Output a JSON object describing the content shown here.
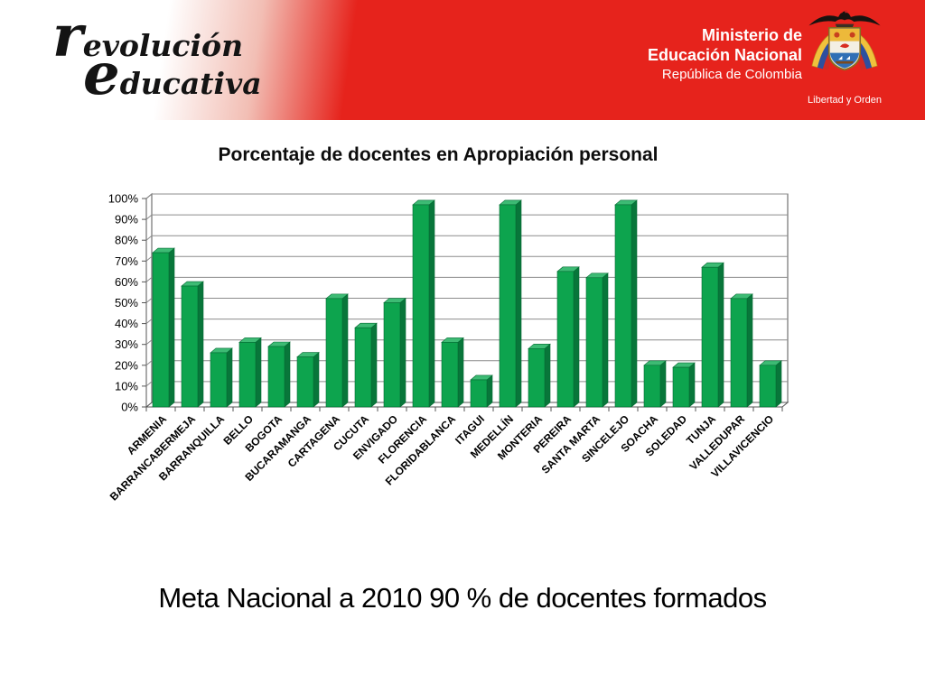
{
  "header": {
    "logo_line1": "revolución",
    "logo_line2": "educativa",
    "ministry_line1": "Ministerio de",
    "ministry_line2": "Educación Nacional",
    "ministry_line3": "República de Colombia",
    "coat_caption": "Libertad y Orden",
    "banner_red": "#e6231c"
  },
  "chart_data": {
    "type": "bar",
    "title": "Porcentaje de docentes en Apropiación personal",
    "xlabel": "",
    "ylabel": "",
    "ylim": [
      0,
      100
    ],
    "ytick_step": 10,
    "yticks": [
      "0%",
      "10%",
      "20%",
      "30%",
      "40%",
      "50%",
      "60%",
      "70%",
      "80%",
      "90%",
      "100%"
    ],
    "grid": true,
    "legend": false,
    "style_3d": true,
    "categories": [
      "ARMENIA",
      "BARRANCABERMEJA",
      "BARRANQUILLA",
      "BELLO",
      "BOGOTA",
      "BUCARAMANGA",
      "CARTAGENA",
      "CUCUTA",
      "ENVIGADO",
      "FLORENCIA",
      "FLORIDABLANCA",
      "ITAGUI",
      "MEDELLÍN",
      "MONTERIA",
      "PEREIRA",
      "SANTA MARTA",
      "SINCELEJO",
      "SOACHA",
      "SOLEDAD",
      "TUNJA",
      "VALLEDUPAR",
      "VILLAVICENCIO"
    ],
    "values": [
      74,
      58,
      26,
      31,
      29,
      24,
      52,
      38,
      50,
      97,
      31,
      13,
      97,
      28,
      65,
      62,
      97,
      20,
      19,
      67,
      52,
      20
    ],
    "bar_color": "#0da44e",
    "bar_side_color": "#08763a",
    "bar_top_color": "#3dbb74",
    "bar_edge_color": "#056b33",
    "gridline_color": "#8c8c8c",
    "axis_color": "#555555"
  },
  "caption": "Meta Nacional a 2010 90 % de docentes formados"
}
